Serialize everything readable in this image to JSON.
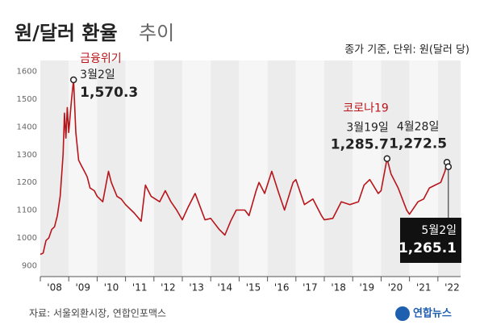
{
  "chart_data": {
    "type": "line",
    "title": "원/달러 환율",
    "title_suffix": "추이",
    "subtitle": "종가 기준, 단위: 원(달러 당)",
    "source": "자료: 서울외환시장, 연합인포맥스",
    "logo": "연합뉴스",
    "color": "#b8151b",
    "xlim": [
      2008,
      2022.8
    ],
    "xticks": [
      {
        "value": 2008,
        "label": "'08"
      },
      {
        "value": 2009,
        "label": "'09"
      },
      {
        "value": 2010,
        "label": "'10"
      },
      {
        "value": 2011,
        "label": "'11"
      },
      {
        "value": 2012,
        "label": "'12"
      },
      {
        "value": 2013,
        "label": "'13"
      },
      {
        "value": 2014,
        "label": "'14"
      },
      {
        "value": 2015,
        "label": "'15"
      },
      {
        "value": 2016,
        "label": "'16"
      },
      {
        "value": 2017,
        "label": "'17"
      },
      {
        "value": 2018,
        "label": "'18"
      },
      {
        "value": 2019,
        "label": "'19"
      },
      {
        "value": 2020,
        "label": "'20"
      },
      {
        "value": 2021,
        "label": "'21"
      },
      {
        "value": 2022,
        "label": "'22"
      }
    ],
    "ylim": [
      860,
      1640
    ],
    "yticks": [
      900,
      1000,
      1100,
      1200,
      1300,
      1400,
      1500,
      1600
    ],
    "x": [
      2008.0,
      2008.1,
      2008.2,
      2008.3,
      2008.4,
      2008.5,
      2008.6,
      2008.7,
      2008.8,
      2008.85,
      2008.9,
      2008.95,
      2009.0,
      2009.1,
      2009.17,
      2009.25,
      2009.35,
      2009.45,
      2009.55,
      2009.65,
      2009.75,
      2009.9,
      2010.0,
      2010.2,
      2010.4,
      2010.5,
      2010.7,
      2010.85,
      2011.0,
      2011.3,
      2011.55,
      2011.7,
      2011.9,
      2012.2,
      2012.4,
      2012.6,
      2012.8,
      2013.0,
      2013.2,
      2013.45,
      2013.6,
      2013.8,
      2014.0,
      2014.3,
      2014.5,
      2014.7,
      2014.9,
      2015.2,
      2015.35,
      2015.6,
      2015.7,
      2015.9,
      2016.15,
      2016.4,
      2016.6,
      2016.9,
      2017.0,
      2017.3,
      2017.6,
      2017.9,
      2018.0,
      2018.3,
      2018.6,
      2018.9,
      2019.2,
      2019.4,
      2019.6,
      2019.9,
      2020.0,
      2020.21,
      2020.35,
      2020.6,
      2020.9,
      2021.0,
      2021.3,
      2021.5,
      2021.7,
      2021.9,
      2022.1,
      2022.25,
      2022.32,
      2022.34
    ],
    "values": [
      940,
      945,
      990,
      1000,
      1030,
      1040,
      1080,
      1150,
      1300,
      1450,
      1360,
      1470,
      1380,
      1500,
      1570.3,
      1380,
      1280,
      1260,
      1240,
      1220,
      1180,
      1170,
      1150,
      1130,
      1240,
      1200,
      1150,
      1140,
      1120,
      1090,
      1060,
      1190,
      1150,
      1130,
      1170,
      1130,
      1100,
      1065,
      1110,
      1160,
      1120,
      1065,
      1070,
      1030,
      1010,
      1060,
      1100,
      1100,
      1080,
      1170,
      1200,
      1160,
      1240,
      1160,
      1100,
      1200,
      1210,
      1120,
      1140,
      1080,
      1065,
      1070,
      1130,
      1120,
      1130,
      1190,
      1210,
      1160,
      1170,
      1285.7,
      1230,
      1180,
      1100,
      1085,
      1130,
      1140,
      1180,
      1190,
      1200,
      1240,
      1272.5,
      1265.1
    ],
    "annotations": [
      {
        "title": "금융위기",
        "date": "3월2일",
        "x": 2009.17,
        "value": 1570.3,
        "value_label": "1,570.3"
      },
      {
        "title": "코로나19",
        "date": "3월19일",
        "x": 2020.21,
        "value": 1285.7,
        "value_label": "1,285.7"
      },
      {
        "date": "4월28일",
        "x": 2022.32,
        "value": 1272.5,
        "value_label": "1,272.5"
      },
      {
        "date": "5월2일",
        "x": 2022.34,
        "value": 1265.1,
        "value_label": "1,265.1"
      }
    ]
  }
}
